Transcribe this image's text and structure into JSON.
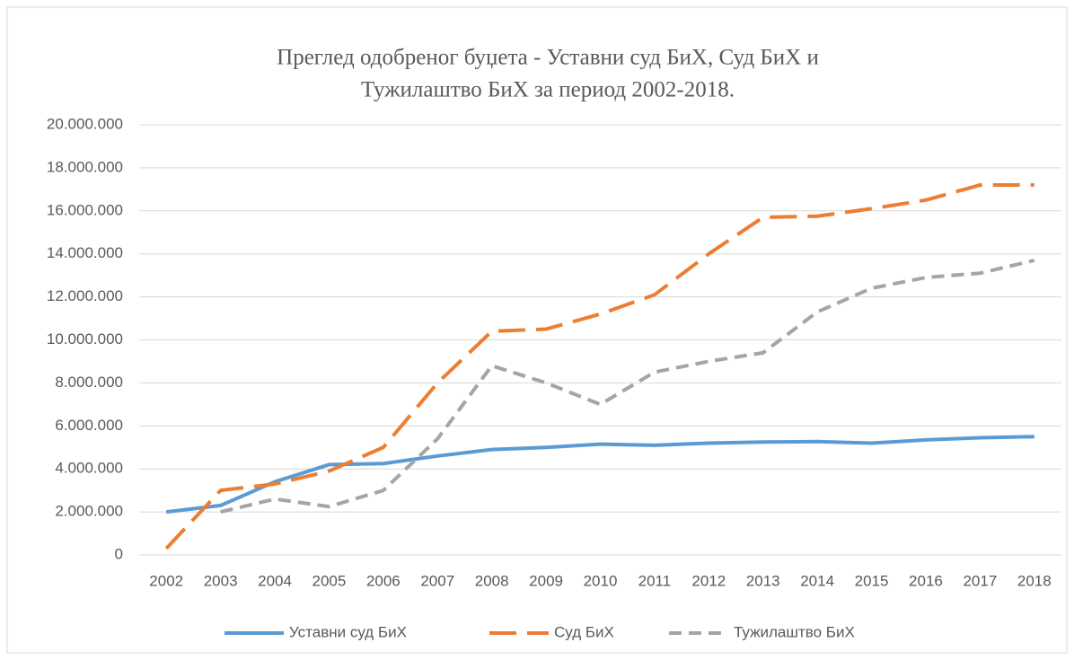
{
  "chart_data": {
    "type": "line",
    "title": [
      "Преглед одобреног буџета - Уставни суд БиХ, Суд БиХ и",
      "Тужилаштво БиХ за период 2002-2018."
    ],
    "categories": [
      "2002",
      "2003",
      "2004",
      "2005",
      "2006",
      "2007",
      "2008",
      "2009",
      "2010",
      "2011",
      "2012",
      "2013",
      "2014",
      "2015",
      "2016",
      "2017",
      "2018"
    ],
    "series": [
      {
        "name": "Уставни суд БиХ",
        "color": "#5b9bd5",
        "line_style": "solid",
        "values": [
          2000000,
          2300000,
          3400000,
          4200000,
          4250000,
          4600000,
          4900000,
          5000000,
          5150000,
          5100000,
          5200000,
          5250000,
          5270000,
          5200000,
          5350000,
          5450000,
          5500000
        ]
      },
      {
        "name": "Суд БиХ",
        "color": "#ed7d31",
        "line_style": "long-dash",
        "values": [
          300000,
          3000000,
          3300000,
          3900000,
          5000000,
          8000000,
          10400000,
          10500000,
          11200000,
          12100000,
          14000000,
          15700000,
          15750000,
          16100000,
          16500000,
          17200000,
          17200000
        ]
      },
      {
        "name": "Тужилаштво БиХ",
        "color": "#a5a5a5",
        "line_style": "dash",
        "values": [
          null,
          2000000,
          2600000,
          2250000,
          3000000,
          5400000,
          8800000,
          8000000,
          7000000,
          8500000,
          9000000,
          9400000,
          11300000,
          12400000,
          12900000,
          13100000,
          13700000
        ]
      }
    ],
    "ylim": [
      0,
      20000000
    ],
    "yticks": [
      0,
      {
        "value": 2000000,
        "label": "2.000.000"
      },
      {
        "value": 4000000,
        "label": "4.000.000"
      },
      {
        "value": 6000000,
        "label": "6.000.000"
      },
      {
        "value": 8000000,
        "label": "8.000.000"
      },
      {
        "value": 10000000,
        "label": "10.000.000"
      },
      {
        "value": 12000000,
        "label": "12.000.000"
      },
      {
        "value": 14000000,
        "label": "14.000.000"
      },
      {
        "value": 16000000,
        "label": "16.000.000"
      },
      {
        "value": 18000000,
        "label": "18.000.000"
      },
      {
        "value": 20000000,
        "label": "20.000.000"
      }
    ],
    "grid": true,
    "legend": "bottom"
  }
}
